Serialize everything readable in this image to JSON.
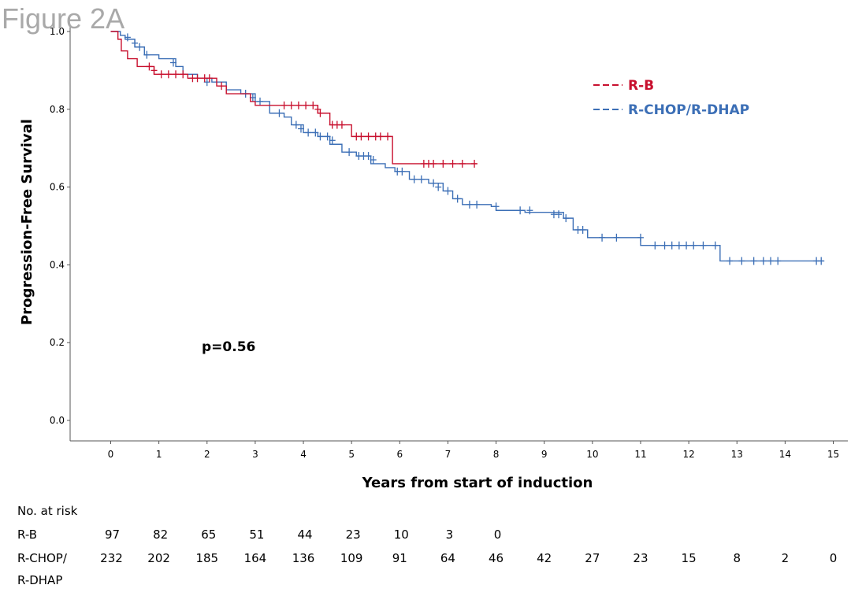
{
  "figure_label": "Figure 2A",
  "chart_data": {
    "type": "line",
    "subtype": "kaplan-meier",
    "xlabel": "Years from start of induction",
    "ylabel": "Progression-Free Survival",
    "xlim": [
      0,
      15
    ],
    "ylim": [
      0,
      1.0
    ],
    "x_ticks": [
      "0",
      "1",
      "2",
      "3",
      "4",
      "5",
      "6",
      "7",
      "8",
      "9",
      "10",
      "11",
      "12",
      "13",
      "14",
      "15"
    ],
    "y_ticks": [
      "0.0",
      "0.2",
      "0.4",
      "0.6",
      "0.8",
      "1.0"
    ],
    "annotation": "p=0.56",
    "legend_position": "top-right",
    "series": [
      {
        "name": "R-B",
        "color": "#c8102e",
        "steps": [
          [
            0,
            1.0
          ],
          [
            0.15,
            0.98
          ],
          [
            0.22,
            0.95
          ],
          [
            0.35,
            0.93
          ],
          [
            0.55,
            0.91
          ],
          [
            0.9,
            0.89
          ],
          [
            1.6,
            0.88
          ],
          [
            2.2,
            0.86
          ],
          [
            2.4,
            0.84
          ],
          [
            2.9,
            0.82
          ],
          [
            3.0,
            0.81
          ],
          [
            4.3,
            0.79
          ],
          [
            4.55,
            0.76
          ],
          [
            5.0,
            0.73
          ],
          [
            5.85,
            0.66
          ],
          [
            7.6,
            0.66
          ]
        ],
        "censored": [
          [
            0.8,
            0.91
          ],
          [
            0.9,
            0.9
          ],
          [
            1.05,
            0.89
          ],
          [
            1.2,
            0.89
          ],
          [
            1.35,
            0.89
          ],
          [
            1.5,
            0.89
          ],
          [
            1.7,
            0.88
          ],
          [
            1.8,
            0.88
          ],
          [
            1.95,
            0.88
          ],
          [
            2.05,
            0.88
          ],
          [
            2.3,
            0.86
          ],
          [
            3.6,
            0.81
          ],
          [
            3.75,
            0.81
          ],
          [
            3.9,
            0.81
          ],
          [
            4.05,
            0.81
          ],
          [
            4.2,
            0.81
          ],
          [
            4.3,
            0.8
          ],
          [
            4.35,
            0.79
          ],
          [
            4.6,
            0.76
          ],
          [
            4.7,
            0.76
          ],
          [
            4.8,
            0.76
          ],
          [
            5.1,
            0.73
          ],
          [
            5.2,
            0.73
          ],
          [
            5.35,
            0.73
          ],
          [
            5.5,
            0.73
          ],
          [
            5.6,
            0.73
          ],
          [
            5.75,
            0.73
          ],
          [
            6.5,
            0.66
          ],
          [
            6.6,
            0.66
          ],
          [
            6.7,
            0.66
          ],
          [
            6.9,
            0.66
          ],
          [
            7.1,
            0.66
          ],
          [
            7.3,
            0.66
          ],
          [
            7.55,
            0.66
          ]
        ]
      },
      {
        "name": "R-CHOP/R-DHAP",
        "color": "#3c6fb6",
        "steps": [
          [
            0,
            1.0
          ],
          [
            0.2,
            0.99
          ],
          [
            0.3,
            0.98
          ],
          [
            0.5,
            0.96
          ],
          [
            0.7,
            0.94
          ],
          [
            1.0,
            0.93
          ],
          [
            1.35,
            0.91
          ],
          [
            1.5,
            0.89
          ],
          [
            1.8,
            0.88
          ],
          [
            2.1,
            0.87
          ],
          [
            2.4,
            0.85
          ],
          [
            2.7,
            0.84
          ],
          [
            3.0,
            0.82
          ],
          [
            3.3,
            0.79
          ],
          [
            3.6,
            0.78
          ],
          [
            3.75,
            0.76
          ],
          [
            4.0,
            0.74
          ],
          [
            4.3,
            0.73
          ],
          [
            4.55,
            0.71
          ],
          [
            4.8,
            0.69
          ],
          [
            5.1,
            0.68
          ],
          [
            5.4,
            0.66
          ],
          [
            5.7,
            0.65
          ],
          [
            5.9,
            0.64
          ],
          [
            6.2,
            0.62
          ],
          [
            6.6,
            0.61
          ],
          [
            6.9,
            0.59
          ],
          [
            7.1,
            0.57
          ],
          [
            7.3,
            0.555
          ],
          [
            7.9,
            0.55
          ],
          [
            8.0,
            0.54
          ],
          [
            8.6,
            0.535
          ],
          [
            9.4,
            0.52
          ],
          [
            9.6,
            0.49
          ],
          [
            9.9,
            0.47
          ],
          [
            11.0,
            0.45
          ],
          [
            12.65,
            0.41
          ],
          [
            14.8,
            0.41
          ]
        ],
        "censored": [
          [
            0.35,
            0.985
          ],
          [
            0.5,
            0.97
          ],
          [
            0.6,
            0.96
          ],
          [
            0.75,
            0.94
          ],
          [
            1.3,
            0.92
          ],
          [
            2.0,
            0.87
          ],
          [
            2.8,
            0.84
          ],
          [
            2.95,
            0.83
          ],
          [
            3.1,
            0.82
          ],
          [
            3.5,
            0.79
          ],
          [
            3.85,
            0.76
          ],
          [
            3.95,
            0.75
          ],
          [
            4.1,
            0.74
          ],
          [
            4.25,
            0.74
          ],
          [
            4.35,
            0.73
          ],
          [
            4.5,
            0.73
          ],
          [
            4.6,
            0.72
          ],
          [
            4.95,
            0.69
          ],
          [
            5.15,
            0.68
          ],
          [
            5.25,
            0.68
          ],
          [
            5.35,
            0.68
          ],
          [
            5.45,
            0.67
          ],
          [
            5.95,
            0.64
          ],
          [
            6.05,
            0.64
          ],
          [
            6.3,
            0.62
          ],
          [
            6.45,
            0.62
          ],
          [
            6.7,
            0.61
          ],
          [
            6.8,
            0.6
          ],
          [
            7.0,
            0.59
          ],
          [
            7.2,
            0.57
          ],
          [
            7.45,
            0.555
          ],
          [
            7.6,
            0.555
          ],
          [
            8.0,
            0.55
          ],
          [
            8.5,
            0.54
          ],
          [
            8.7,
            0.54
          ],
          [
            9.2,
            0.53
          ],
          [
            9.3,
            0.53
          ],
          [
            9.45,
            0.52
          ],
          [
            9.7,
            0.49
          ],
          [
            9.8,
            0.49
          ],
          [
            10.2,
            0.47
          ],
          [
            10.5,
            0.47
          ],
          [
            11.0,
            0.47
          ],
          [
            11.3,
            0.45
          ],
          [
            11.5,
            0.45
          ],
          [
            11.65,
            0.45
          ],
          [
            11.8,
            0.45
          ],
          [
            11.95,
            0.45
          ],
          [
            12.1,
            0.45
          ],
          [
            12.3,
            0.45
          ],
          [
            12.55,
            0.45
          ],
          [
            12.85,
            0.41
          ],
          [
            13.1,
            0.41
          ],
          [
            13.35,
            0.41
          ],
          [
            13.55,
            0.41
          ],
          [
            13.7,
            0.41
          ],
          [
            13.85,
            0.41
          ],
          [
            14.65,
            0.41
          ],
          [
            14.75,
            0.41
          ]
        ]
      }
    ]
  },
  "risk_table": {
    "title": "No. at risk",
    "rows": [
      {
        "label": "R-B",
        "values": [
          "97",
          "82",
          "65",
          "51",
          "44",
          "23",
          "10",
          "3",
          "0"
        ]
      },
      {
        "label": "R-CHOP/",
        "label2": "R-DHAP",
        "values": [
          "232",
          "202",
          "185",
          "164",
          "136",
          "109",
          "91",
          "64",
          "46",
          "42",
          "27",
          "23",
          "15",
          "8",
          "2",
          "0"
        ]
      }
    ]
  }
}
